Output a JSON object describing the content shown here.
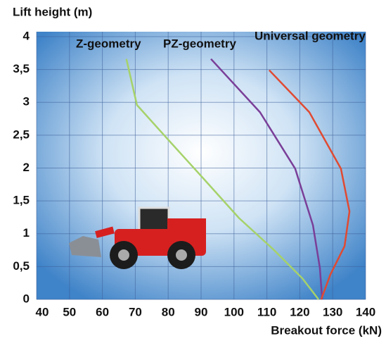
{
  "chart_data": {
    "type": "line",
    "y_label": "Lift height (m)",
    "x_label": "Breakout force (kN)",
    "xlim": [
      40,
      140
    ],
    "xticks": [
      40,
      50,
      60,
      70,
      80,
      90,
      100,
      110,
      120,
      130,
      140
    ],
    "ylim": [
      0,
      4
    ],
    "yticks": [
      0,
      {
        "value": 0.5,
        "label": "0,5"
      },
      1,
      {
        "value": 1.5,
        "label": "1,5"
      },
      2,
      {
        "value": 2.5,
        "label": "2,5"
      },
      3,
      {
        "value": 3.5,
        "label": "3,5"
      },
      4
    ],
    "grid": true,
    "series": [
      {
        "name": "Z-geometry",
        "color": "#a6d26a",
        "x": [
          67.3,
          70.5,
          80.2,
          90.9,
          101.5,
          112.2,
          120.8,
          125.7
        ],
        "values": [
          3.66,
          2.96,
          2.42,
          1.83,
          1.24,
          0.75,
          0.32,
          0
        ]
      },
      {
        "name": "PZ-geometry",
        "color": "#7a3f98",
        "x": [
          93,
          107.9,
          118.6,
          124,
          126.1,
          126.8
        ],
        "values": [
          3.66,
          2.85,
          1.99,
          1.13,
          0.48,
          0
        ]
      },
      {
        "name": "Universal geometry",
        "color": "#e04a32",
        "x": [
          110.7,
          122.9,
          132.5,
          135.1,
          133.6,
          129.3,
          126.5
        ],
        "values": [
          3.49,
          2.85,
          1.99,
          1.34,
          0.81,
          0.38,
          0
        ]
      }
    ]
  }
}
